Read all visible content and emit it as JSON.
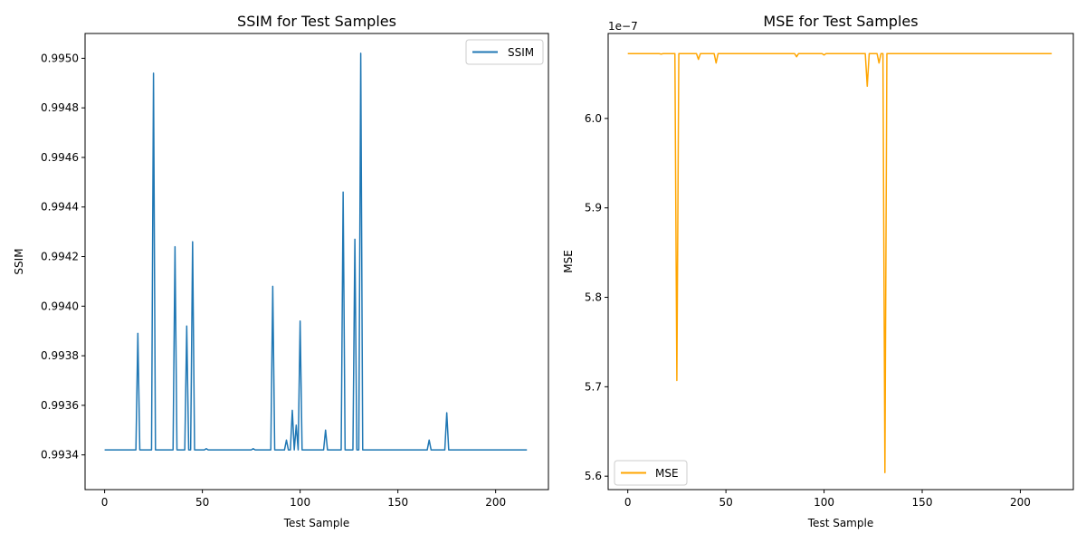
{
  "chart_data": [
    {
      "type": "line",
      "title": "SSIM for Test Samples",
      "xlabel": "Test Sample",
      "ylabel": "SSIM",
      "xlim": [
        -10,
        227
      ],
      "ylim": [
        0.99326,
        0.9951
      ],
      "xticks": [
        0,
        50,
        100,
        150,
        200
      ],
      "yticks": [
        0.9934,
        0.9936,
        0.9938,
        0.994,
        0.9942,
        0.9944,
        0.9946,
        0.9948,
        0.995
      ],
      "ytick_labels": [
        "0.9934",
        "0.9936",
        "0.9938",
        "0.9940",
        "0.9942",
        "0.9944",
        "0.9946",
        "0.9948",
        "0.9950"
      ],
      "offset_text": "",
      "grid": false,
      "legend_position": "upper right",
      "baseline": 0.99342,
      "n_points": 217,
      "spikes": [
        [
          17,
          0.99389
        ],
        [
          25,
          0.99494
        ],
        [
          36,
          0.99424
        ],
        [
          42,
          0.99392
        ],
        [
          45,
          0.99426
        ],
        [
          52,
          0.993425
        ],
        [
          76,
          0.993425
        ],
        [
          86,
          0.99408
        ],
        [
          93,
          0.99346
        ],
        [
          96,
          0.99358
        ],
        [
          98,
          0.99352
        ],
        [
          100,
          0.99394
        ],
        [
          113,
          0.9935
        ],
        [
          122,
          0.99446
        ],
        [
          128,
          0.99427
        ],
        [
          131,
          0.99502
        ],
        [
          166,
          0.99346
        ],
        [
          175,
          0.99357
        ]
      ],
      "series": [
        {
          "name": "SSIM",
          "color": "#1f77b4"
        }
      ]
    },
    {
      "type": "line",
      "title": "MSE for Test Samples",
      "xlabel": "Test Sample",
      "ylabel": "MSE",
      "xlim": [
        -10,
        227
      ],
      "ylim": [
        5.585e-07,
        6.095e-07
      ],
      "xticks": [
        0,
        50,
        100,
        150,
        200
      ],
      "yticks": [
        5.6e-07,
        5.7e-07,
        5.8e-07,
        5.9e-07,
        6e-07
      ],
      "ytick_labels": [
        "5.6",
        "5.7",
        "5.8",
        "5.9",
        "6.0"
      ],
      "offset_text": "1e−7",
      "grid": false,
      "legend_position": "lower left",
      "baseline": 6.0725e-07,
      "n_points": 217,
      "spikes": [
        [
          17,
          6.072e-07
        ],
        [
          25,
          5.707e-07
        ],
        [
          36,
          6.066e-07
        ],
        [
          45,
          6.062e-07
        ],
        [
          86,
          6.069e-07
        ],
        [
          100,
          6.071e-07
        ],
        [
          122,
          6.036e-07
        ],
        [
          128,
          6.062e-07
        ],
        [
          131,
          5.604e-07
        ]
      ],
      "series": [
        {
          "name": "MSE",
          "color": "#ffa500"
        }
      ]
    }
  ]
}
